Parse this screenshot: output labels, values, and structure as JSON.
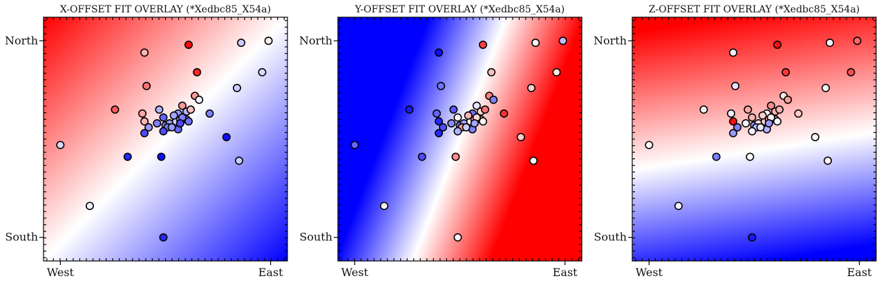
{
  "chart_data": [
    {
      "type": "scatter",
      "title": "X-OFFSET FIT OVERLAY (*Xedbc85_X54a)",
      "xticks": [
        "West",
        "East"
      ],
      "yticks": [
        "North",
        "South"
      ],
      "xlim": [
        -0.08,
        1.08
      ],
      "ylim": [
        -0.12,
        1.12
      ],
      "background": "linear gradient, red toward north-west, blue toward south-east",
      "colormap": "bwr"
    },
    {
      "type": "scatter",
      "title": "Y-OFFSET FIT OVERLAY (*Xedbc85_X54a)",
      "xticks": [
        "West",
        "East"
      ],
      "yticks": [
        "North",
        "South"
      ],
      "xlim": [
        -0.08,
        1.08
      ],
      "ylim": [
        -0.12,
        1.12
      ],
      "background": "linear gradient, blue toward west, red toward east",
      "colormap": "bwr"
    },
    {
      "type": "scatter",
      "title": "Z-OFFSET FIT OVERLAY (*Xedbc85_X54a)",
      "xticks": [
        "West",
        "East"
      ],
      "yticks": [
        "North",
        "South"
      ],
      "xlim": [
        -0.08,
        1.08
      ],
      "ylim": [
        -0.12,
        1.12
      ],
      "background": "linear gradient, red toward north, blue toward south",
      "colormap": "bwr"
    }
  ],
  "points": {
    "x": [
      0.4,
      0.61,
      0.86,
      0.99,
      0.39,
      0.65,
      0.41,
      0.58,
      0.26,
      0.96,
      0.84,
      0.64,
      0.66,
      0.47,
      0.56,
      0.6,
      0.62,
      0.4,
      0.42,
      0.5,
      0.52,
      0.55,
      0.57,
      0.6,
      0.49,
      0.54,
      0.58,
      0.61,
      0.51,
      0.56,
      0.4,
      0.46,
      0.49,
      0.53,
      0.57,
      0.71,
      0.79,
      0.32,
      0.48,
      0.0,
      0.85,
      0.14,
      0.49
    ],
    "y": [
      0.94,
      0.98,
      0.99,
      1.0,
      0.63,
      0.84,
      0.77,
      0.67,
      0.65,
      0.84,
      0.76,
      0.72,
      0.7,
      0.65,
      0.63,
      0.64,
      0.65,
      0.59,
      0.56,
      0.57,
      0.58,
      0.59,
      0.6,
      0.6,
      0.61,
      0.62,
      0.61,
      0.59,
      0.56,
      0.55,
      0.53,
      0.58,
      0.54,
      0.56,
      0.58,
      0.63,
      0.51,
      0.41,
      0.41,
      0.47,
      0.39,
      0.16,
      0.0
    ],
    "vx": [
      0.3,
      0.95,
      -0.2,
      0.05,
      0.35,
      0.85,
      0.55,
      0.4,
      0.65,
      -0.15,
      -0.2,
      0.4,
      -0.05,
      -0.3,
      -0.4,
      -0.3,
      0.25,
      0.3,
      -0.4,
      -0.5,
      -0.4,
      -0.2,
      -0.3,
      -0.5,
      -0.6,
      -0.35,
      -0.5,
      -0.55,
      -0.5,
      -0.6,
      -0.7,
      -0.5,
      -0.7,
      -0.4,
      -0.7,
      -0.5,
      -0.95,
      -0.85,
      -0.95,
      -0.15,
      -0.2,
      -0.05,
      -0.85
    ],
    "vy": [
      -0.95,
      0.75,
      0.05,
      -0.25,
      -0.6,
      0.25,
      -0.55,
      -0.1,
      -0.9,
      0.1,
      0.2,
      0.5,
      -0.5,
      -0.65,
      -0.55,
      0.15,
      0.55,
      -0.85,
      -0.7,
      -0.55,
      -0.35,
      0.05,
      0.3,
      0.5,
      0.05,
      0.3,
      0.15,
      0.05,
      0.4,
      -0.5,
      -0.85,
      -0.45,
      -0.3,
      -0.2,
      -0.35,
      0.8,
      0.2,
      -0.7,
      0.45,
      -0.6,
      0.05,
      0.05,
      0.05
    ],
    "vz": [
      -0.05,
      0.95,
      -0.05,
      0.6,
      -0.05,
      0.8,
      -0.1,
      0.45,
      -0.05,
      0.7,
      0.0,
      0.1,
      0.4,
      0.35,
      0.0,
      0.3,
      0.3,
      0.95,
      -0.5,
      -0.4,
      0.1,
      0.2,
      0.3,
      0.25,
      0.3,
      0.2,
      0.05,
      0.0,
      -0.25,
      -0.3,
      -0.4,
      -0.05,
      -0.05,
      -0.1,
      -0.4,
      0.2,
      0.0,
      -0.5,
      0.0,
      0.0,
      0.05,
      -0.05,
      -0.9
    ]
  }
}
